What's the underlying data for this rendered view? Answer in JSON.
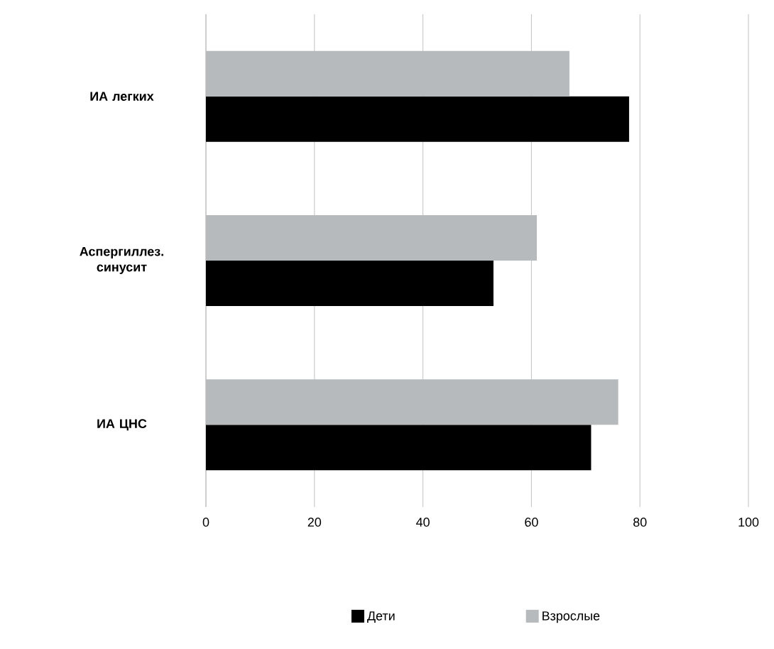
{
  "chart_data": {
    "type": "bar",
    "orientation": "horizontal",
    "categories": [
      "ИА  легких",
      "Аспергиллез. синусит",
      "ИА ЦНС"
    ],
    "series": [
      {
        "name": "Дети",
        "color": "#000000",
        "values": [
          78,
          53,
          71
        ]
      },
      {
        "name": "Взрослые",
        "color": "#b7babd",
        "values": [
          67,
          61,
          76
        ]
      }
    ],
    "xlim": [
      0,
      100
    ],
    "xticks": [
      0,
      20,
      40,
      60,
      80,
      100
    ],
    "grid": "x",
    "legend": "bottom"
  }
}
